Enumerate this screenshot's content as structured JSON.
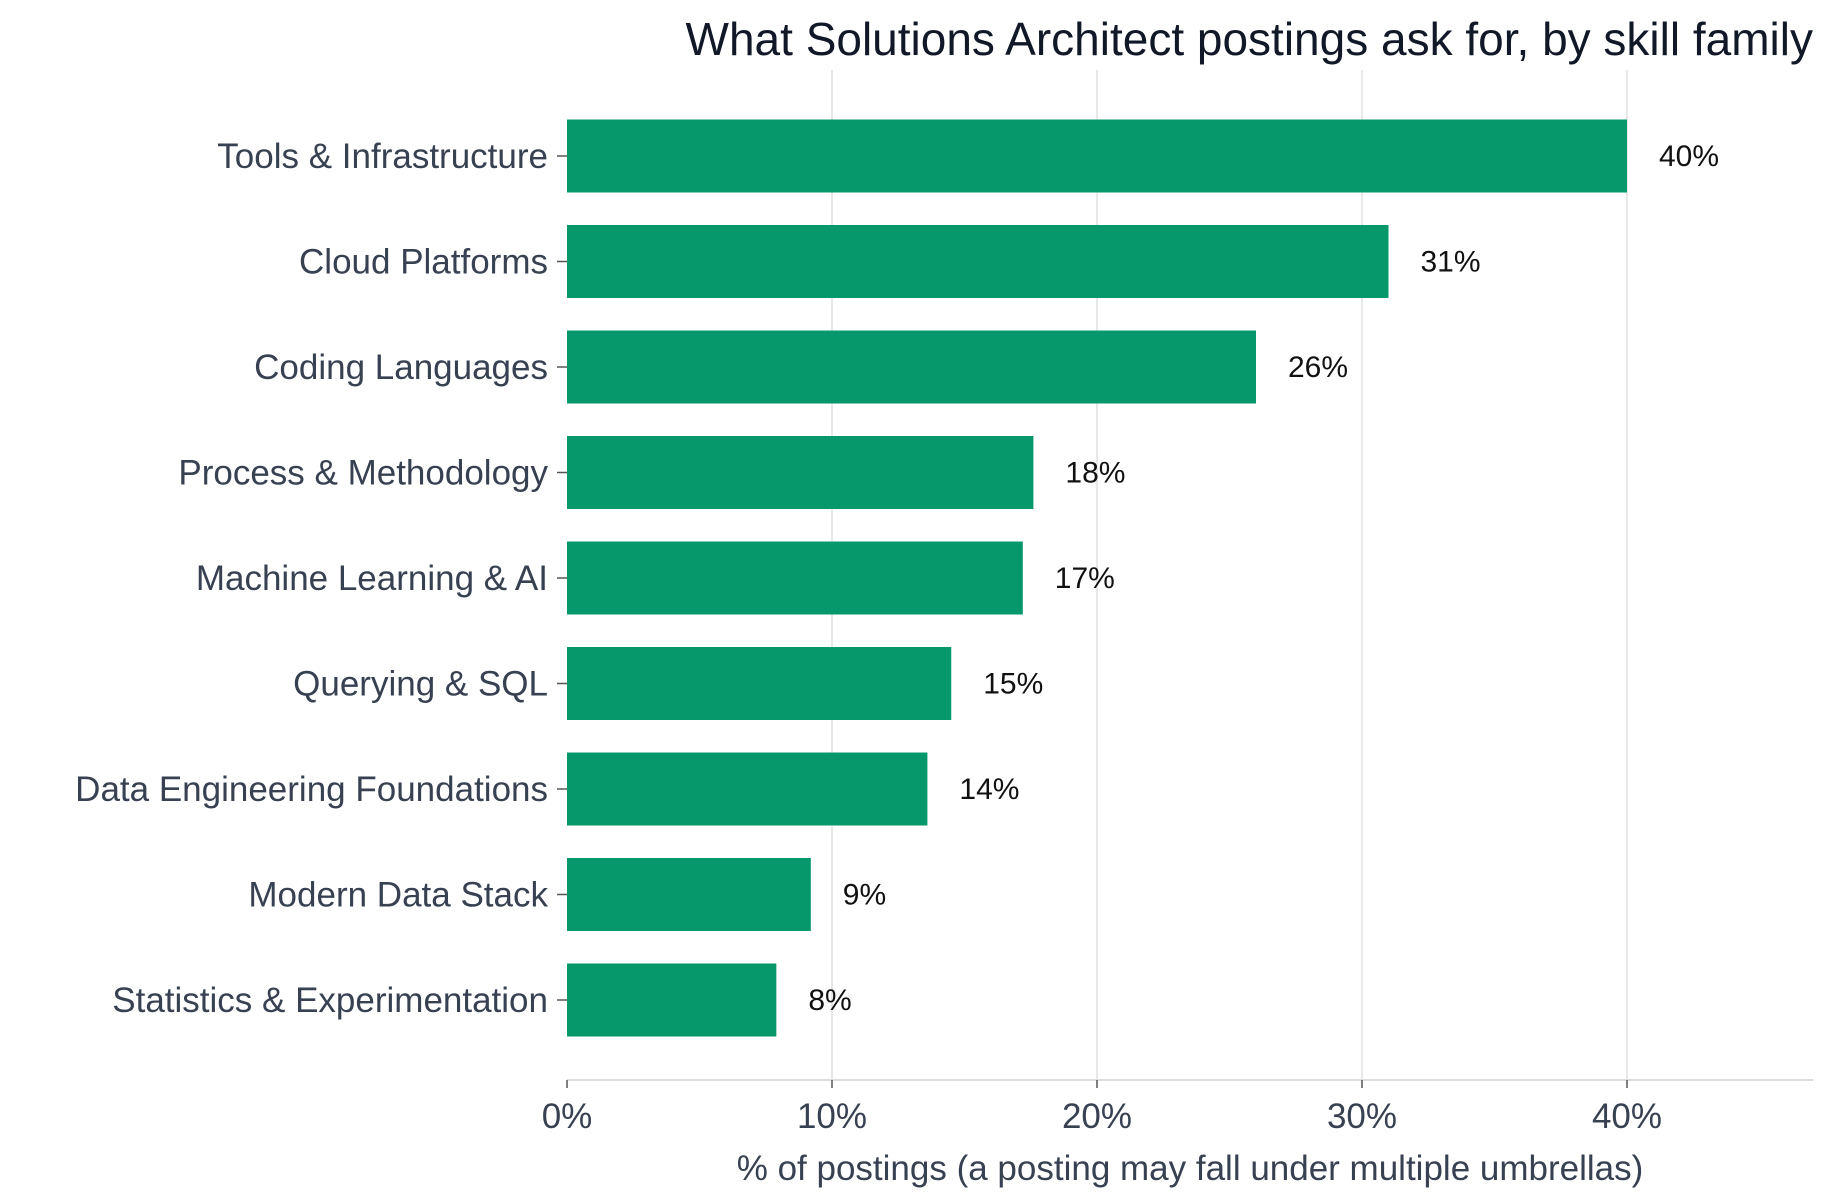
{
  "chart_data": {
    "type": "bar",
    "orientation": "horizontal",
    "title": "What Solutions Architect postings ask for, by skill family",
    "xlabel": "% of postings (a posting may fall under multiple umbrellas)",
    "ylabel": "",
    "categories": [
      "Tools & Infrastructure",
      "Cloud Platforms",
      "Coding Languages",
      "Process & Methodology",
      "Machine Learning & AI",
      "Querying & SQL",
      "Data Engineering Foundations",
      "Modern Data Stack",
      "Statistics & Experimentation"
    ],
    "values": [
      40.0,
      31.0,
      26.0,
      17.6,
      17.2,
      14.5,
      13.6,
      9.2,
      7.9
    ],
    "data_labels": [
      "40%",
      "31%",
      "26%",
      "18%",
      "17%",
      "15%",
      "14%",
      "9%",
      "8%"
    ],
    "xlim": [
      0,
      47
    ],
    "xticks": [
      0,
      10,
      20,
      30,
      40
    ],
    "xtick_labels": [
      "0%",
      "10%",
      "20%",
      "30%",
      "40%"
    ],
    "grid": "vertical gridlines",
    "colors": {
      "bar": "#06976a",
      "title": "#111827",
      "axis_text": "#374151",
      "data_label": "#111111",
      "grid": "#e8e8e8",
      "axis_line": "#dddddd",
      "tick": "#555555"
    }
  }
}
